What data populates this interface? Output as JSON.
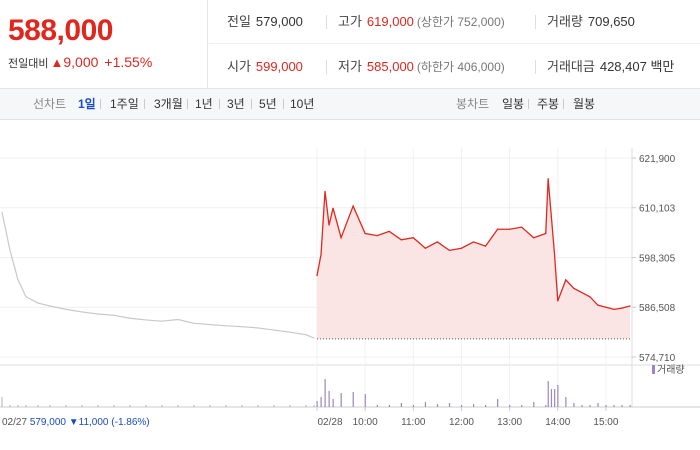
{
  "header": {
    "price": "588,000",
    "change_label": "전일대비",
    "change_arrow": "▲",
    "change_value": "9,000",
    "change_pct": "+1.55%"
  },
  "stats": {
    "prev_close": {
      "label": "전일",
      "value": "579,000"
    },
    "high": {
      "label": "고가",
      "value": "619,000",
      "sub": "(상한가 752,000)"
    },
    "volume": {
      "label": "거래량",
      "value": "709,650"
    },
    "open": {
      "label": "시가",
      "value": "599,000"
    },
    "low": {
      "label": "저가",
      "value": "585,000",
      "sub": "(하한가 406,000)"
    },
    "amount": {
      "label": "거래대금",
      "value": "428,407",
      "unit": "백만"
    }
  },
  "toolbar": {
    "line_chart_label": "선차트",
    "periods": [
      "1일",
      "1주일",
      "3개월",
      "1년",
      "3년",
      "5년",
      "10년"
    ],
    "active_period": "1일",
    "candle_label": "봉차트",
    "candles": [
      "일봉",
      "주봉",
      "월봉"
    ]
  },
  "colors": {
    "up": "#e0271d",
    "down": "#1a4bc2",
    "prev_line": "#c8c8c8",
    "area_fill": "#fbe4e4",
    "volume": "#9a86c4"
  },
  "chart_data": {
    "type": "line",
    "y_ticks": [
      "621,900",
      "610,103",
      "598,305",
      "586,508",
      "574,710"
    ],
    "ylim": [
      574710,
      621900
    ],
    "x_ticks": [
      "02/28",
      "10:00",
      "11:00",
      "12:00",
      "13:00",
      "14:00",
      "15:00"
    ],
    "volume_label": "거래량",
    "prev_day_info": {
      "date": "02/27",
      "close": "579,000",
      "change": "▼11,000",
      "pct": "(-1.86%)"
    },
    "prev_close_line": 579000,
    "series": [
      {
        "x": [
          "02/27 09:00",
          "09:10",
          "09:20",
          "09:30",
          "09:45",
          "10:00",
          "10:20",
          "10:40",
          "11:00",
          "11:20",
          "11:40",
          "12:00",
          "12:20",
          "12:40",
          "13:00",
          "13:20",
          "13:40",
          "14:00",
          "14:20",
          "14:40",
          "15:00",
          "15:20",
          "15:30"
        ],
        "values": [
          609000,
          600000,
          593000,
          589000,
          587500,
          586800,
          586000,
          585400,
          584900,
          584600,
          583900,
          583500,
          583200,
          583600,
          582700,
          582400,
          582100,
          581900,
          581600,
          581100,
          580600,
          580000,
          579200
        ]
      },
      {
        "x": [
          "09:00",
          "09:05",
          "09:10",
          "09:15",
          "09:20",
          "09:30",
          "09:45",
          "10:00",
          "10:15",
          "10:30",
          "10:45",
          "11:00",
          "11:15",
          "11:30",
          "11:45",
          "12:00",
          "12:15",
          "12:30",
          "12:45",
          "13:00",
          "13:15",
          "13:30",
          "13:45",
          "13:48",
          "13:52",
          "13:56",
          "14:00",
          "14:10",
          "14:20",
          "14:30",
          "14:40",
          "14:50",
          "15:00",
          "15:10",
          "15:20",
          "15:30"
        ],
        "values": [
          594000,
          599000,
          614000,
          606000,
          610000,
          603000,
          610500,
          604000,
          603500,
          604500,
          602500,
          603000,
          600500,
          602000,
          600000,
          600500,
          602000,
          601000,
          605000,
          605000,
          605500,
          603000,
          604000,
          617000,
          608000,
          599000,
          588000,
          593000,
          591000,
          590000,
          589000,
          587000,
          586500,
          586000,
          586300,
          586800
        ]
      }
    ]
  }
}
